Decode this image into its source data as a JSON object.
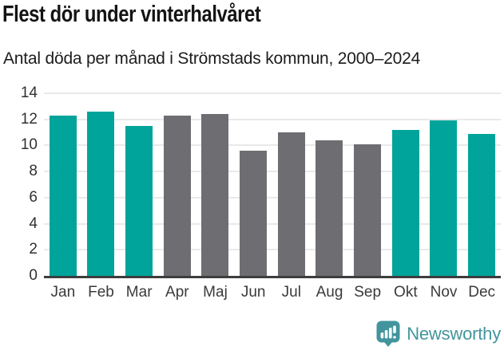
{
  "header": {
    "title": "Flest dör under vinterhalvåret",
    "subtitle": "Antal döda per månad i Strömstads kommun, 2000–2024"
  },
  "chart_data": {
    "type": "bar",
    "title": "Flest dör under vinterhalvåret",
    "subtitle": "Antal döda per månad i Strömstads kommun, 2000–2024",
    "categories": [
      "Jan",
      "Feb",
      "Mar",
      "Apr",
      "Maj",
      "Jun",
      "Jul",
      "Aug",
      "Sep",
      "Okt",
      "Nov",
      "Dec"
    ],
    "values": [
      12.3,
      12.6,
      11.5,
      12.3,
      12.4,
      9.6,
      11.0,
      10.4,
      10.1,
      11.2,
      11.9,
      10.9
    ],
    "highlighted": [
      true,
      true,
      true,
      false,
      false,
      false,
      false,
      false,
      false,
      true,
      true,
      true
    ],
    "xlabel": "",
    "ylabel": "",
    "ylim": [
      0,
      14
    ],
    "yticks": [
      0,
      2,
      4,
      6,
      8,
      10,
      12,
      14
    ],
    "grid": true,
    "legend": "none"
  },
  "colors": {
    "bar_highlight": "#00a49a",
    "bar_default": "#6e6e72",
    "gridline": "#e9e9e9",
    "axis_line": "#3d3d3d",
    "brand_teal": "#42959d"
  },
  "footer": {
    "brand": "Newsworthy",
    "logo_icon": "bar-chart-speech-bubble-icon"
  }
}
